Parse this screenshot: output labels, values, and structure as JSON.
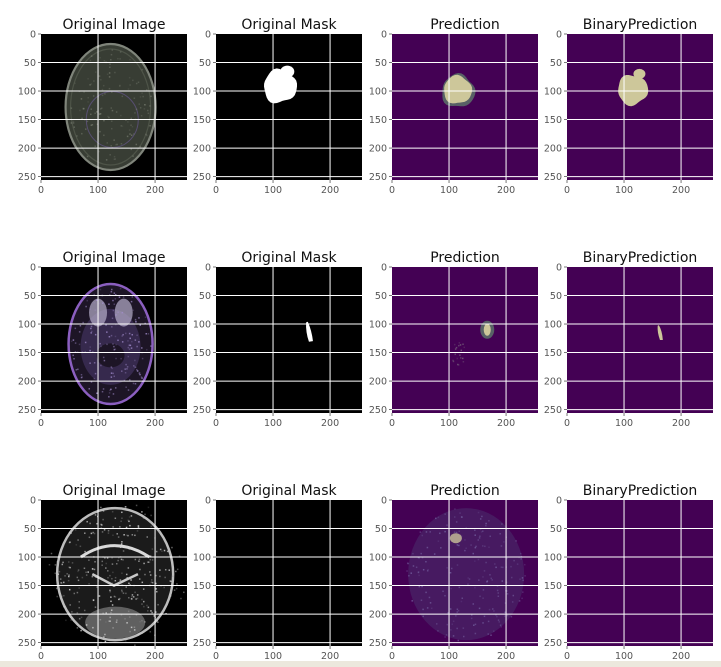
{
  "chart_data": {
    "type": "image-grid",
    "rows": [
      {
        "panels": [
          {
            "title": "Original Image",
            "kind": "mri",
            "variant": 1
          },
          {
            "title": "Original Mask",
            "kind": "mask",
            "variant": 1
          },
          {
            "title": "Prediction",
            "kind": "pred",
            "variant": 1
          },
          {
            "title": "BinaryPrediction",
            "kind": "binpred",
            "variant": 1
          }
        ]
      },
      {
        "panels": [
          {
            "title": "Original Image",
            "kind": "mri",
            "variant": 2
          },
          {
            "title": "Original Mask",
            "kind": "mask",
            "variant": 2
          },
          {
            "title": "Prediction",
            "kind": "pred",
            "variant": 2
          },
          {
            "title": "BinaryPrediction",
            "kind": "binpred",
            "variant": 2
          }
        ]
      },
      {
        "panels": [
          {
            "title": "Original Image",
            "kind": "mri",
            "variant": 3
          },
          {
            "title": "Original Mask",
            "kind": "mask",
            "variant": 3
          },
          {
            "title": "Prediction",
            "kind": "pred",
            "variant": 3
          },
          {
            "title": "BinaryPrediction",
            "kind": "binpred",
            "variant": 3
          }
        ]
      }
    ],
    "xlim": [
      0,
      256
    ],
    "ylim": [
      256,
      0
    ],
    "xticks": [
      0,
      100,
      200
    ],
    "yticks": [
      0,
      50,
      100,
      150,
      200,
      250
    ],
    "grid": true,
    "colors": {
      "mask_bg": "#000000",
      "mask_fg": "#ffffff",
      "pred_bg": "#440154",
      "pred_fg": "#cdc79a",
      "grid": "#ffffff",
      "mri_purple": "#8b5fc0"
    }
  }
}
